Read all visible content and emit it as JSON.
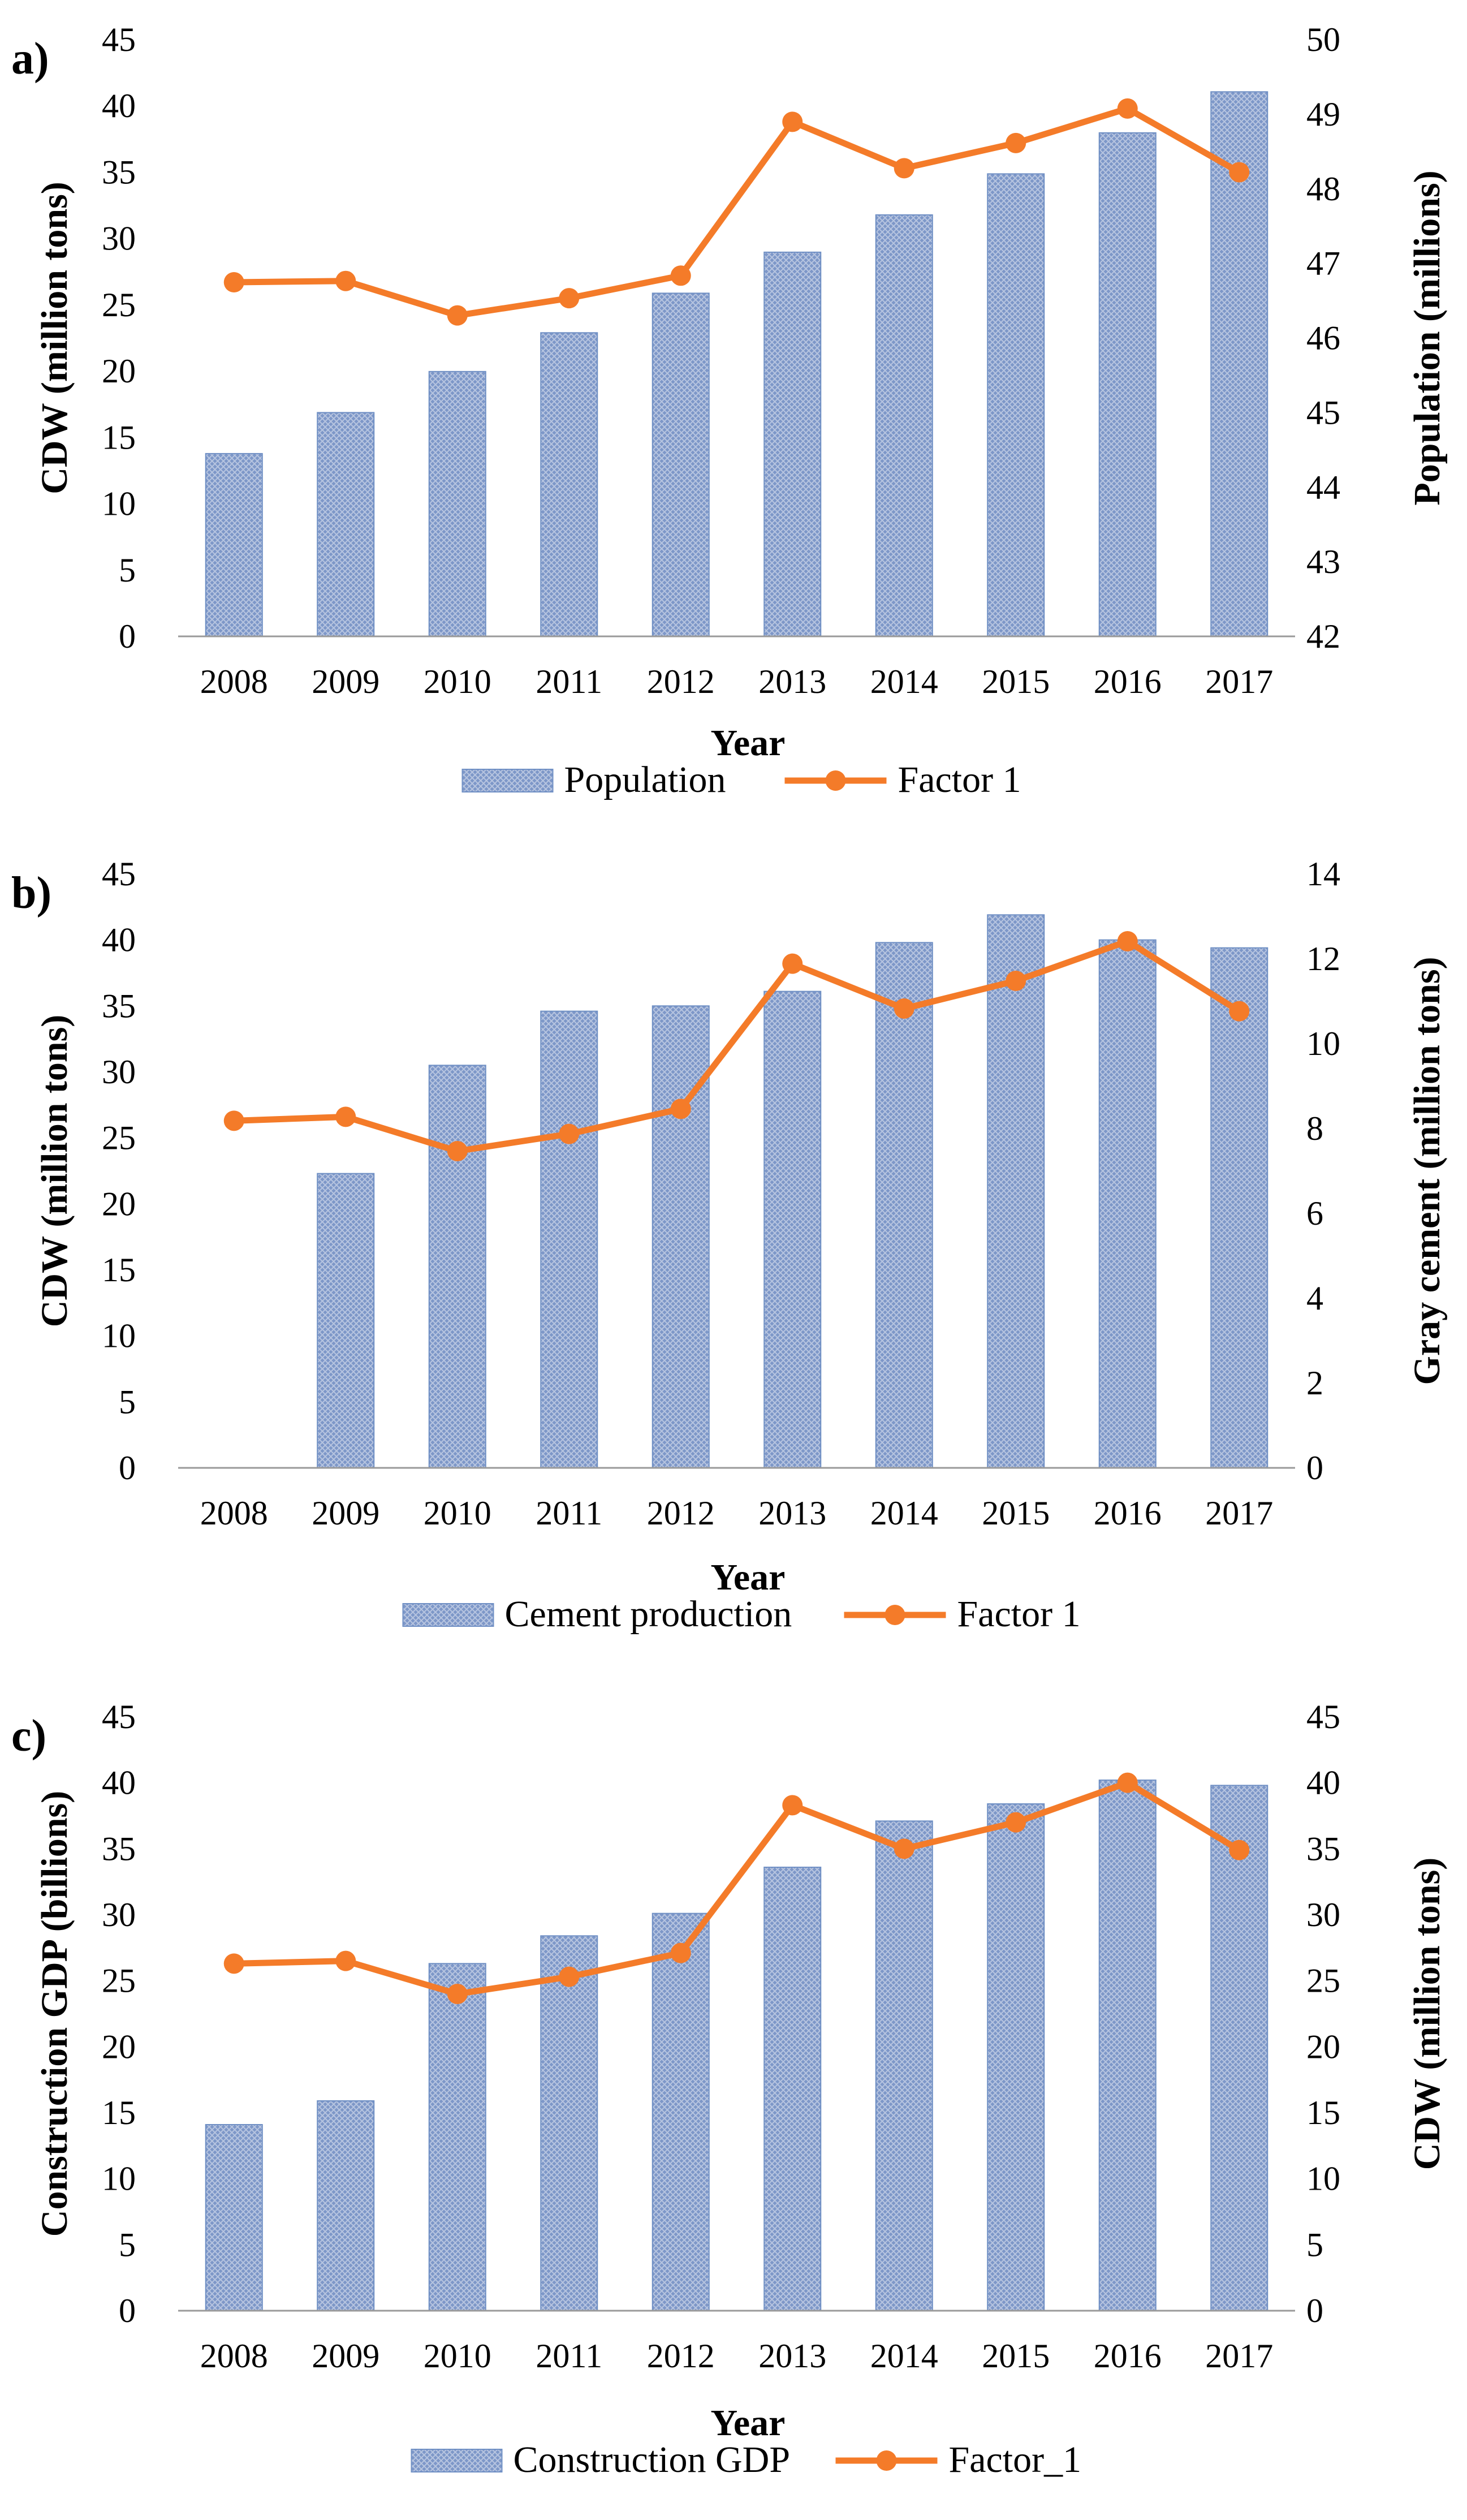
{
  "colors": {
    "bar": "#6f8fc4",
    "bar_light": "#d3ddec",
    "line": "#f47b29",
    "axis": "#9a9a9a"
  },
  "chart_data": [
    {
      "type": "bar",
      "panel_label": "a)",
      "xlabel": "Year",
      "ylabel": "CDW (million tons)",
      "y2label": "Population (millions)",
      "categories": [
        "2008",
        "2009",
        "2010",
        "2011",
        "2012",
        "2013",
        "2014",
        "2015",
        "2016",
        "2017"
      ],
      "ylim": [
        0,
        45
      ],
      "yticks": [
        "0",
        "5",
        "10",
        "15",
        "20",
        "25",
        "30",
        "35",
        "40",
        "45"
      ],
      "y2lim": [
        42,
        50
      ],
      "y2ticks": [
        "42",
        "43",
        "44",
        "45",
        "46",
        "47",
        "48",
        "49",
        "50"
      ],
      "bar_axis": "y2",
      "line_axis": "y",
      "series": [
        {
          "name": "Population",
          "kind": "bar",
          "values": [
            44.45,
            45.0,
            45.55,
            46.07,
            46.6,
            47.15,
            47.65,
            48.2,
            48.75,
            49.3
          ]
        },
        {
          "name": "Factor 1",
          "kind": "line",
          "values": [
            26.7,
            26.8,
            24.2,
            25.5,
            27.2,
            38.8,
            35.3,
            37.2,
            39.8,
            35.0
          ]
        }
      ],
      "legend": [
        "Population",
        "Factor 1"
      ]
    },
    {
      "type": "bar",
      "panel_label": "b)",
      "xlabel": "Year",
      "ylabel": "CDW (million tons)",
      "y2label": "Gray cement (million tons)",
      "categories": [
        "2008",
        "2009",
        "2010",
        "2011",
        "2012",
        "2013",
        "2014",
        "2015",
        "2016",
        "2017"
      ],
      "ylim": [
        0,
        45
      ],
      "yticks": [
        "0",
        "5",
        "10",
        "15",
        "20",
        "25",
        "30",
        "35",
        "40",
        "45"
      ],
      "y2lim": [
        0,
        14
      ],
      "y2ticks": [
        "0",
        "2",
        "4",
        "6",
        "8",
        "10",
        "12",
        "14"
      ],
      "bar_axis": "y",
      "line_axis": "y",
      "series": [
        {
          "name": "Cement production",
          "kind": "bar",
          "values": [
            0,
            22.3,
            30.5,
            34.6,
            35.0,
            36.1,
            39.8,
            41.9,
            40.0,
            39.4
          ]
        },
        {
          "name": "Factor 1",
          "kind": "line",
          "values": [
            26.3,
            26.6,
            24.0,
            25.3,
            27.2,
            38.2,
            34.8,
            36.9,
            39.9,
            34.6
          ]
        }
      ],
      "legend": [
        "Cement production",
        "Factor 1"
      ]
    },
    {
      "type": "bar",
      "panel_label": "c)",
      "xlabel": "Year",
      "ylabel": "Construction GDP (billions)",
      "y2label": "CDW (million tons)",
      "categories": [
        "2008",
        "2009",
        "2010",
        "2011",
        "2012",
        "2013",
        "2014",
        "2015",
        "2016",
        "2017"
      ],
      "ylim": [
        0,
        45
      ],
      "yticks": [
        "0",
        "5",
        "10",
        "15",
        "20",
        "25",
        "30",
        "35",
        "40",
        "45"
      ],
      "y2lim": [
        0,
        45
      ],
      "y2ticks": [
        "0",
        "5",
        "10",
        "15",
        "20",
        "25",
        "30",
        "35",
        "40",
        "45"
      ],
      "bar_axis": "y",
      "line_axis": "y2",
      "series": [
        {
          "name": "Construction GDP",
          "kind": "bar",
          "values": [
            14.1,
            15.9,
            26.3,
            28.4,
            30.1,
            33.6,
            37.1,
            38.4,
            40.2,
            39.8
          ]
        },
        {
          "name": "Factor_1",
          "kind": "line",
          "values": [
            26.3,
            26.5,
            24.0,
            25.3,
            27.1,
            38.3,
            35.0,
            37.0,
            40.0,
            34.9
          ]
        }
      ],
      "legend": [
        "Construction GDP",
        "Factor_1"
      ]
    }
  ]
}
